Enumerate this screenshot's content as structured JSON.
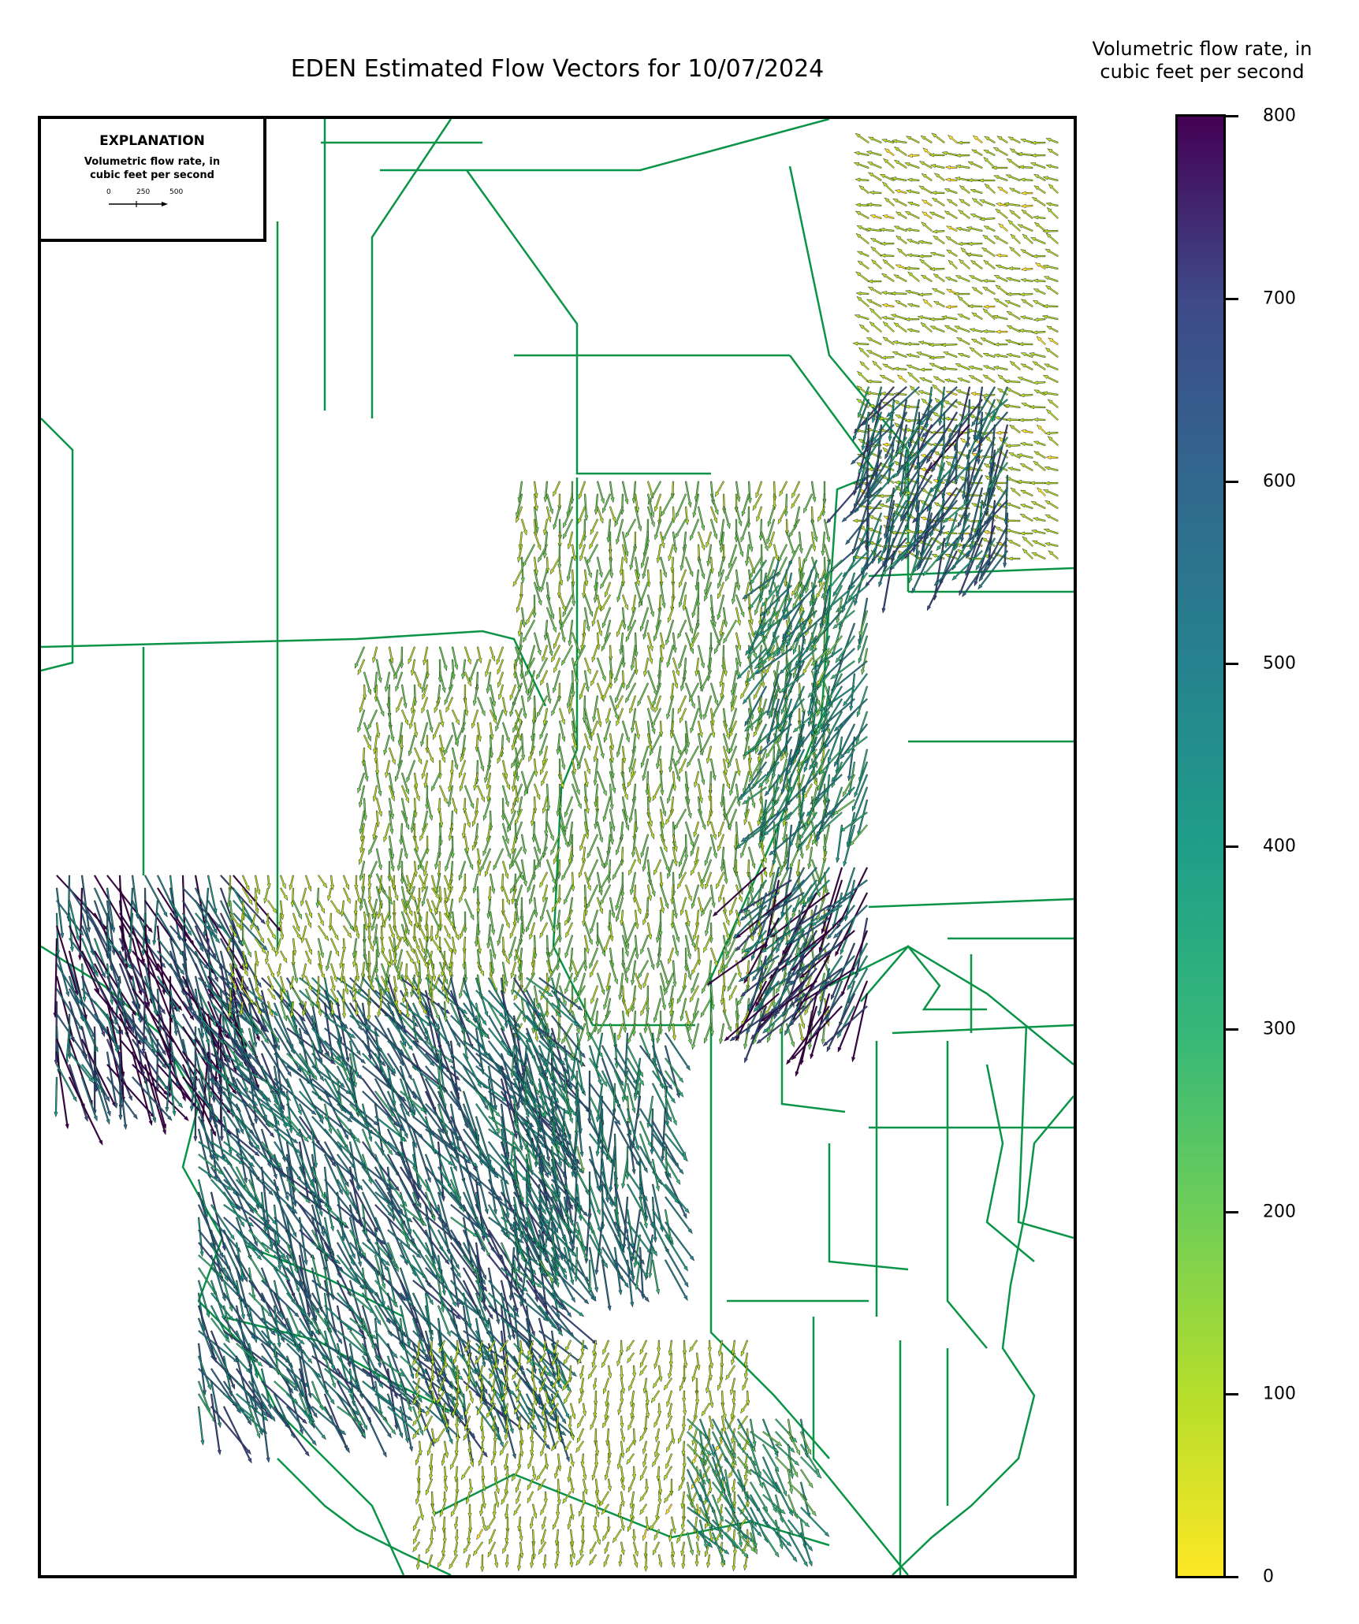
{
  "title": "EDEN Estimated Flow Vectors for 10/07/2024",
  "colorbar": {
    "label_line1": "Volumetric flow rate, in",
    "label_line2": "cubic feet per second",
    "ticks": [
      "0",
      "100",
      "200",
      "300",
      "400",
      "500",
      "600",
      "700",
      "800"
    ],
    "range": [
      0,
      800
    ],
    "colormap": "viridis_r"
  },
  "explanation": {
    "title": "EXPLANATION",
    "subtitle_line1": "Volumetric flow rate, in",
    "subtitle_line2": "cubic feet per second",
    "scale_labels": [
      "0",
      "250",
      "500"
    ]
  },
  "colors": {
    "boundary": "#0a9447",
    "arrow_edge": "#000000",
    "frame": "#000000"
  }
}
